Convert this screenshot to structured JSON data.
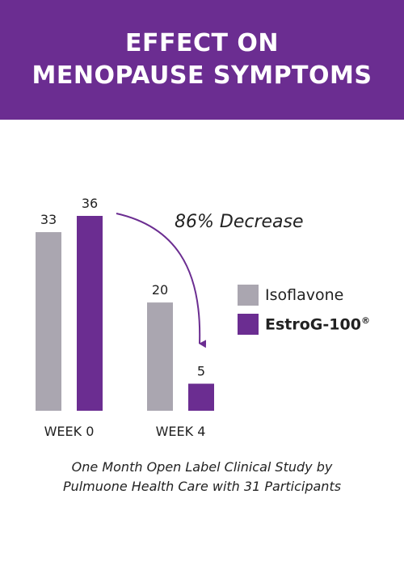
{
  "header": {
    "title_line1": "EFFECT ON",
    "title_line2": "MENOPAUSE SYMPTOMS"
  },
  "colors": {
    "banner": "#6b2d91",
    "isoflavone": "#aaa6b0",
    "estrog": "#6b2d91"
  },
  "chart_data": {
    "type": "bar",
    "title": "EFFECT ON MENOPAUSE SYMPTOMS",
    "categories": [
      "WEEK 0",
      "WEEK 4"
    ],
    "series": [
      {
        "name": "Isoflavone",
        "values": [
          33,
          20
        ],
        "color": "#aaa6b0"
      },
      {
        "name": "EstroG-100",
        "values": [
          36,
          5
        ],
        "color": "#6b2d91"
      }
    ],
    "ylim": [
      0,
      36
    ],
    "grid": false,
    "legend_position": "right",
    "annotation": "86% Decrease"
  },
  "legend": {
    "isoflavone": "Isoflavone",
    "estrog": "EstroG-100",
    "estrog_mark": "®"
  },
  "caption": {
    "line1": "One Month Open Label Clinical Study by",
    "line2": "Pulmuone Health Care with 31 Participants"
  }
}
